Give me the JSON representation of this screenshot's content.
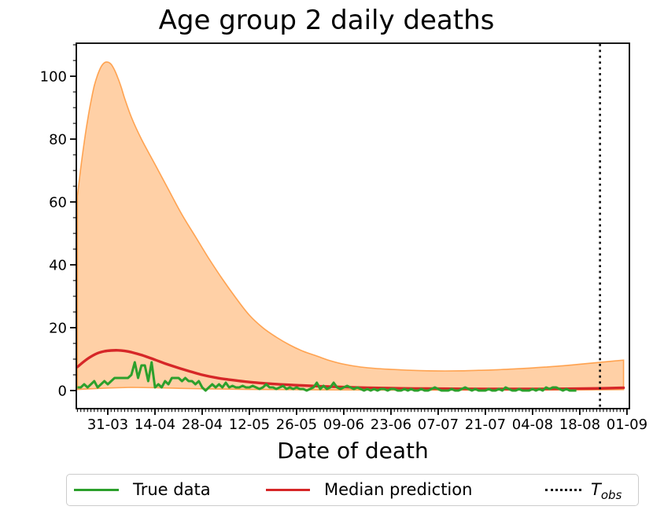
{
  "chart_data": {
    "type": "line",
    "title": "Age group 2 daily deaths",
    "xlabel": "Date of death",
    "ylabel": "",
    "x_tick_labels": [
      "31-03",
      "14-04",
      "28-04",
      "12-05",
      "26-05",
      "09-06",
      "23-06",
      "07-07",
      "21-07",
      "04-08",
      "18-08",
      "01-09"
    ],
    "x_major_days": [
      0,
      14,
      28,
      42,
      56,
      70,
      84,
      98,
      112,
      126,
      140,
      154
    ],
    "y_ticks": [
      0,
      20,
      40,
      60,
      80,
      100
    ],
    "y_minor_step": 5,
    "xlim_days": [
      -9.33,
      154.72
    ],
    "ylim": [
      -5.75,
      110.5
    ],
    "grid": false,
    "legend_position": "bottom",
    "t_obs_day": 146,
    "legend": {
      "true_data": "True data",
      "median": "Median prediction",
      "t_obs_main": "T",
      "t_obs_sub": "obs"
    },
    "colors": {
      "true_data": "#2ca02c",
      "median": "#d62728",
      "band_fill": "rgba(255,127,14,0.37)",
      "band_edge": "rgba(255,127,14,0.65)",
      "t_obs": "#111111",
      "axis": "#000000"
    },
    "series": {
      "true_data": {
        "name": "True data",
        "day_start": -9,
        "values": [
          1,
          1,
          2,
          1,
          2,
          3,
          1,
          2,
          3,
          2,
          3,
          4,
          4,
          4,
          4,
          4,
          5,
          9,
          4,
          8,
          8,
          3,
          9,
          1,
          2,
          1,
          3,
          2,
          4,
          4,
          4,
          3,
          4,
          3,
          3,
          2,
          3,
          1,
          0,
          1,
          2,
          1,
          2,
          1,
          2.5,
          1,
          1.5,
          1,
          1,
          1.5,
          1,
          1,
          1.5,
          1,
          0.5,
          1,
          2,
          1,
          1,
          0.5,
          1,
          1.5,
          0.5,
          1,
          0.5,
          1,
          0.5,
          0.5,
          0,
          0.5,
          1,
          2.5,
          0.5,
          1.5,
          0.5,
          1,
          2.5,
          1,
          0.5,
          1,
          1.5,
          1,
          0.5,
          1,
          0.5,
          0,
          0.5,
          0,
          0.5,
          0,
          0.5,
          0.5,
          0,
          0.5,
          0.5,
          0,
          0,
          0.5,
          0,
          0.5,
          0,
          0,
          0.5,
          0,
          0,
          0.5,
          1,
          0.5,
          0,
          0,
          0,
          0.5,
          0,
          0,
          0.5,
          1,
          0.5,
          0,
          0.5,
          0,
          0,
          0,
          0.5,
          0,
          0,
          0.5,
          0,
          1,
          0.5,
          0,
          0,
          0.5,
          0,
          0,
          0,
          0.5,
          0,
          0.5,
          0,
          1,
          0.5,
          1,
          1,
          0.5,
          0,
          0.5,
          0,
          0,
          0
        ]
      },
      "median_prediction": {
        "name": "Median prediction",
        "points": [
          [
            -9,
            7.5
          ],
          [
            -7,
            9.3
          ],
          [
            -5,
            10.8
          ],
          [
            -3,
            11.9
          ],
          [
            -1,
            12.5
          ],
          [
            1,
            12.75
          ],
          [
            3,
            12.8
          ],
          [
            5,
            12.6
          ],
          [
            7,
            12.2
          ],
          [
            10,
            11.3
          ],
          [
            14,
            9.8
          ],
          [
            17,
            8.6
          ],
          [
            21,
            7.2
          ],
          [
            25,
            5.9
          ],
          [
            28,
            5.0
          ],
          [
            32,
            4.1
          ],
          [
            35,
            3.6
          ],
          [
            42,
            2.7
          ],
          [
            49,
            2.1
          ],
          [
            56,
            1.7
          ],
          [
            63,
            1.35
          ],
          [
            70,
            1.1
          ],
          [
            77,
            0.9
          ],
          [
            84,
            0.75
          ],
          [
            91,
            0.65
          ],
          [
            98,
            0.6
          ],
          [
            105,
            0.55
          ],
          [
            112,
            0.5
          ],
          [
            119,
            0.5
          ],
          [
            126,
            0.5
          ],
          [
            133,
            0.55
          ],
          [
            139,
            0.6
          ],
          [
            146,
            0.7
          ],
          [
            153,
            0.9
          ]
        ]
      },
      "confidence_band": {
        "name": "prediction interval",
        "top": [
          [
            -9,
            62
          ],
          [
            -8,
            71
          ],
          [
            -7,
            79
          ],
          [
            -6,
            86
          ],
          [
            -5,
            92
          ],
          [
            -4,
            97
          ],
          [
            -3,
            100.5
          ],
          [
            -2,
            103
          ],
          [
            -1,
            104.3
          ],
          [
            0,
            104.5
          ],
          [
            1,
            103.8
          ],
          [
            2,
            102
          ],
          [
            3,
            99.5
          ],
          [
            4,
            96.5
          ],
          [
            5,
            93
          ],
          [
            7,
            87
          ],
          [
            10,
            80
          ],
          [
            14,
            72
          ],
          [
            18,
            64
          ],
          [
            22,
            56
          ],
          [
            26,
            49
          ],
          [
            30,
            42
          ],
          [
            34,
            35.5
          ],
          [
            38,
            29.5
          ],
          [
            42,
            24
          ],
          [
            46,
            20
          ],
          [
            50,
            17
          ],
          [
            54,
            14.5
          ],
          [
            58,
            12.5
          ],
          [
            62,
            11
          ],
          [
            66,
            9.5
          ],
          [
            70,
            8.4
          ],
          [
            75,
            7.5
          ],
          [
            80,
            7.0
          ],
          [
            85,
            6.7
          ],
          [
            90,
            6.45
          ],
          [
            95,
            6.3
          ],
          [
            100,
            6.25
          ],
          [
            105,
            6.3
          ],
          [
            110,
            6.45
          ],
          [
            115,
            6.6
          ],
          [
            120,
            6.85
          ],
          [
            125,
            7.15
          ],
          [
            130,
            7.5
          ],
          [
            135,
            7.9
          ],
          [
            140,
            8.4
          ],
          [
            145,
            8.9
          ],
          [
            149,
            9.3
          ],
          [
            153,
            9.7
          ]
        ],
        "bottom": [
          [
            -9,
            0.35
          ],
          [
            0,
            0.8
          ],
          [
            7,
            1.0
          ],
          [
            14,
            0.9
          ],
          [
            21,
            0.7
          ],
          [
            28,
            0.55
          ],
          [
            42,
            0.35
          ],
          [
            56,
            0.25
          ],
          [
            70,
            0.2
          ],
          [
            84,
            0.15
          ],
          [
            98,
            0.12
          ],
          [
            112,
            0.12
          ],
          [
            126,
            0.15
          ],
          [
            140,
            0.2
          ],
          [
            153,
            0.3
          ]
        ]
      }
    }
  }
}
